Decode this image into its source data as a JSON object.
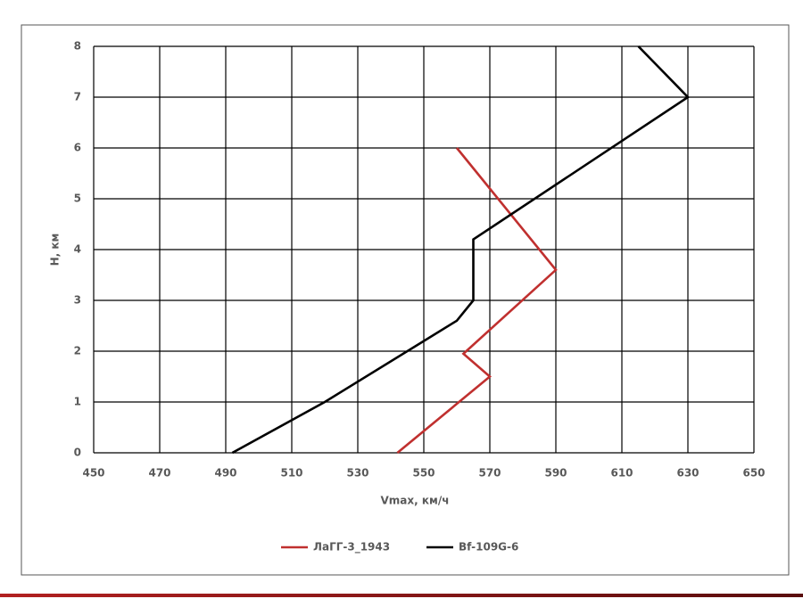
{
  "chart_data": {
    "type": "line",
    "x_label": "Vmax, км/ч",
    "y_label": "H, км",
    "xlim": [
      450,
      650
    ],
    "xticks": [
      450,
      470,
      490,
      510,
      530,
      550,
      570,
      590,
      610,
      630,
      650
    ],
    "ylim": [
      0,
      8
    ],
    "yticks": [
      0,
      1,
      2,
      3,
      4,
      5,
      6,
      7,
      8
    ],
    "grid": true,
    "legend": "bottom",
    "series": [
      {
        "name": "ЛаГГ-3_1943",
        "color": "#c0302f",
        "x": [
          542,
          570,
          562,
          590,
          560
        ],
        "values": [
          0,
          1.5,
          1.95,
          3.6,
          6
        ]
      },
      {
        "name": "Bf-109G-6",
        "color": "#000000",
        "x": [
          492,
          520,
          560,
          565,
          565,
          630,
          615
        ],
        "values": [
          0,
          1,
          2.6,
          3,
          4.2,
          7,
          8
        ]
      }
    ]
  }
}
